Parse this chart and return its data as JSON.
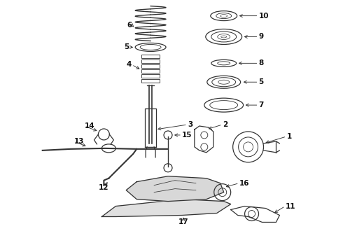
{
  "background_color": "#ffffff",
  "font_size": 7.5,
  "label_color": "#111111",
  "line_color": "#333333",
  "line_width": 0.9
}
